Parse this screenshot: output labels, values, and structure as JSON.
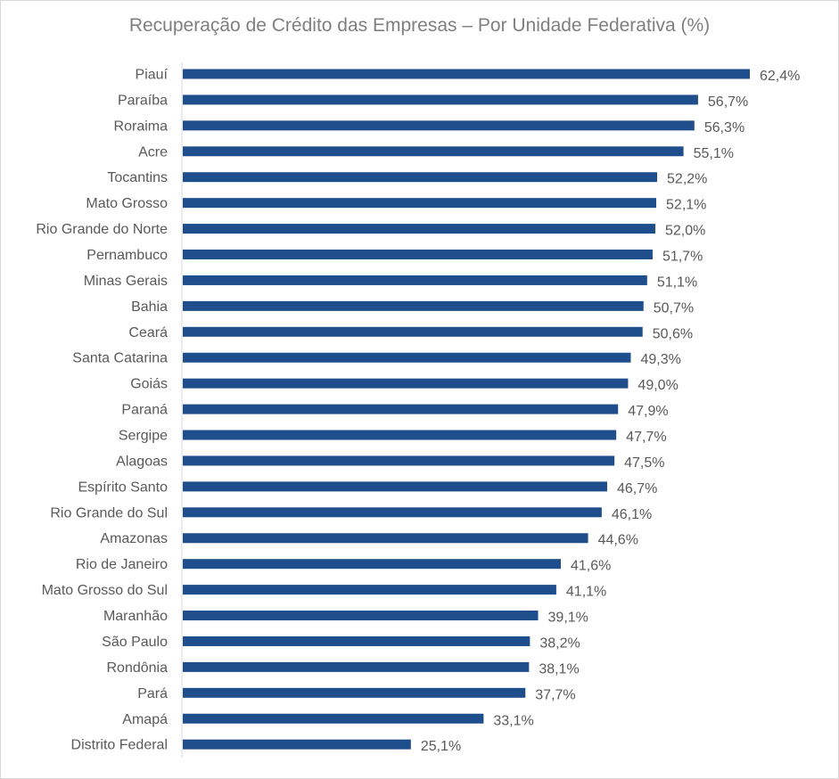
{
  "chart_data": {
    "type": "bar",
    "orientation": "horizontal",
    "title": "Recuperação de Crédito das Empresas – Por Unidade Federativa (%)",
    "xlabel": "",
    "ylabel": "",
    "xlim": [
      0,
      62.4
    ],
    "grid": false,
    "bar_color": "#1f4e8c",
    "categories": [
      "Piauí",
      "Paraíba",
      "Roraima",
      "Acre",
      "Tocantins",
      "Mato Grosso",
      "Rio Grande do Norte",
      "Pernambuco",
      "Minas Gerais",
      "Bahia",
      "Ceará",
      "Santa Catarina",
      "Goiás",
      "Paraná",
      "Sergipe",
      "Alagoas",
      "Espírito Santo",
      "Rio Grande do Sul",
      "Amazonas",
      "Rio de Janeiro",
      "Mato Grosso do Sul",
      "Maranhão",
      "São Paulo",
      "Rondônia",
      "Pará",
      "Amapá",
      "Distrito Federal"
    ],
    "values": [
      62.4,
      56.7,
      56.3,
      55.1,
      52.2,
      52.1,
      52.0,
      51.7,
      51.1,
      50.7,
      50.6,
      49.3,
      49.0,
      47.9,
      47.7,
      47.5,
      46.7,
      46.1,
      44.6,
      41.6,
      41.1,
      39.1,
      38.2,
      38.1,
      37.7,
      33.1,
      25.1
    ],
    "value_labels": [
      "62,4%",
      "56,7%",
      "56,3%",
      "55,1%",
      "52,2%",
      "52,1%",
      "52,0%",
      "51,7%",
      "51,1%",
      "50,7%",
      "50,6%",
      "49,3%",
      "49,0%",
      "47,9%",
      "47,7%",
      "47,5%",
      "46,7%",
      "46,1%",
      "44,6%",
      "41,6%",
      "41,1%",
      "39,1%",
      "38,2%",
      "38,1%",
      "37,7%",
      "33,1%",
      "25,1%"
    ]
  }
}
